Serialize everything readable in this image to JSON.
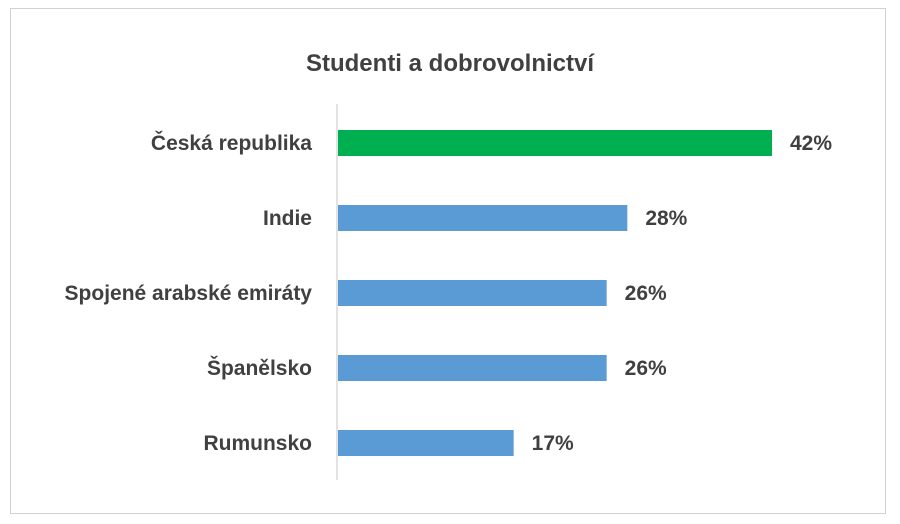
{
  "chart_data": {
    "type": "bar",
    "orientation": "horizontal",
    "title": "Studenti a dobrovolnictví",
    "categories": [
      "Česká republika",
      "Indie",
      "Spojené arabské emiráty",
      "Španělsko",
      "Rumunsko"
    ],
    "values": [
      42,
      28,
      26,
      26,
      17
    ],
    "value_labels": [
      "42%",
      "28%",
      "26%",
      "26%",
      "17%"
    ],
    "bar_colors": [
      "#00b050",
      "#5b9bd5",
      "#5b9bd5",
      "#5b9bd5",
      "#5b9bd5"
    ],
    "xlim": [
      0,
      50
    ],
    "xlabel": "",
    "ylabel": "",
    "grid": false,
    "legend": false
  }
}
